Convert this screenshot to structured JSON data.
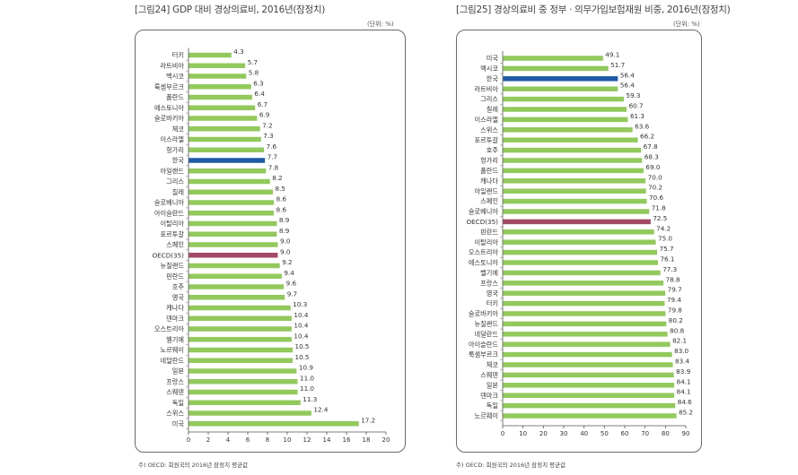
{
  "colors": {
    "bar": "#92c95c",
    "korea": "#1f5aa6",
    "oecd": "#a24a63",
    "highlight_korea_label": "#1f5aa6",
    "highlight_oecd_label": "#a24a63"
  },
  "chart_data": [
    {
      "type": "bar",
      "orientation": "horizontal",
      "title": "[그림24] GDP 대비 경상의료비, 2016년(잠정치)",
      "unit": "(단위: %)",
      "note": "주) OECD: 회원국의 2016년 잠정치 평균값",
      "xlim": [
        0,
        20
      ],
      "xticks": [
        0,
        2,
        4,
        6,
        8,
        10,
        12,
        14,
        16,
        18,
        20
      ],
      "categories": [
        "터키",
        "라트비아",
        "멕시코",
        "룩셈부르크",
        "폴란드",
        "에스토니아",
        "슬로바키아",
        "체코",
        "이스라엘",
        "헝가리",
        "한국",
        "아일랜드",
        "그리스",
        "칠레",
        "슬로베니아",
        "아이슬란드",
        "이탈리아",
        "포르투갈",
        "스페인",
        "OECD(35)",
        "뉴질랜드",
        "핀란드",
        "호주",
        "영국",
        "캐나다",
        "덴마크",
        "오스트리아",
        "벨기에",
        "노르웨이",
        "네덜란드",
        "일본",
        "프랑스",
        "스웨덴",
        "독일",
        "스위스",
        "미국"
      ],
      "values": [
        4.3,
        5.7,
        5.8,
        6.3,
        6.4,
        6.7,
        6.9,
        7.2,
        7.3,
        7.6,
        7.7,
        7.8,
        8.2,
        8.5,
        8.6,
        8.6,
        8.9,
        8.9,
        9.0,
        9.0,
        9.2,
        9.4,
        9.6,
        9.7,
        10.3,
        10.4,
        10.4,
        10.4,
        10.5,
        10.5,
        10.9,
        11.0,
        11.0,
        11.3,
        12.4,
        17.2
      ],
      "labels": [
        "4.3",
        "5.7",
        "5.8",
        "6.3",
        "6.4",
        "6.7",
        "6.9",
        "7.2",
        "7.3",
        "7.6",
        "7.7",
        "7.8",
        "8.2",
        "8.5",
        "8.6",
        "8.6",
        "8.9",
        "8.9",
        "9.0",
        "9.0",
        "9.2",
        "9.4",
        "9.6",
        "9.7",
        "10.3",
        "10.4",
        "10.4",
        "10.4",
        "10.5",
        "10.5",
        "10.9",
        "11.0",
        "11.0",
        "11.3",
        "12.4",
        "17.2"
      ],
      "highlight": {
        "한국": "korea",
        "OECD(35)": "oecd"
      }
    },
    {
      "type": "bar",
      "orientation": "horizontal",
      "title": "[그림25] 경상의료비 중 정부 · 의무가입보험재원 비중, 2016년(잠정치)",
      "unit": "(단위: %)",
      "note": "주) OECD: 회원국의 2016년 잠정치 평균값",
      "xlim": [
        0,
        90
      ],
      "xticks": [
        0,
        10,
        20,
        30,
        40,
        50,
        60,
        70,
        80,
        90
      ],
      "categories": [
        "미국",
        "멕시코",
        "한국",
        "라트비아",
        "그리스",
        "칠레",
        "이스라엘",
        "스위스",
        "포르투갈",
        "호주",
        "헝가리",
        "폴란드",
        "캐나다",
        "아일랜드",
        "스페인",
        "슬로베니아",
        "OECD(35)",
        "핀란드",
        "이탈리아",
        "오스트리아",
        "에스토니아",
        "벨기에",
        "프랑스",
        "영국",
        "터키",
        "슬로바키아",
        "뉴질랜드",
        "네덜란드",
        "아이슬란드",
        "룩셈부르크",
        "체코",
        "스웨덴",
        "일본",
        "덴마크",
        "독일",
        "노르웨이"
      ],
      "values": [
        49.1,
        51.7,
        56.4,
        56.4,
        59.3,
        60.7,
        61.3,
        63.6,
        66.2,
        67.8,
        68.3,
        69.0,
        70.0,
        70.2,
        70.6,
        71.8,
        72.5,
        74.2,
        75.0,
        75.7,
        76.1,
        77.3,
        78.8,
        79.7,
        79.4,
        79.8,
        80.2,
        80.8,
        82.1,
        83.0,
        83.4,
        83.9,
        84.1,
        84.1,
        84.6,
        85.2
      ],
      "labels": [
        "49.1",
        "51.7",
        "56.4",
        "56.4",
        "59.3",
        "60.7",
        "61.3",
        "63.6",
        "66.2",
        "67.8",
        "68.3",
        "69.0",
        "70.0",
        "70.2",
        "70.6",
        "71.8",
        "72.5",
        "74.2",
        "75.0",
        "75.7",
        "76.1",
        "77.3",
        "78.8",
        "79.7",
        "79.4",
        "79.8",
        "80.2",
        "80.8",
        "82.1",
        "83.0",
        "83.4",
        "83.9",
        "84.1",
        "84.1",
        "84.6",
        "85.2"
      ],
      "highlight": {
        "한국": "korea",
        "OECD(35)": "oecd"
      }
    }
  ]
}
